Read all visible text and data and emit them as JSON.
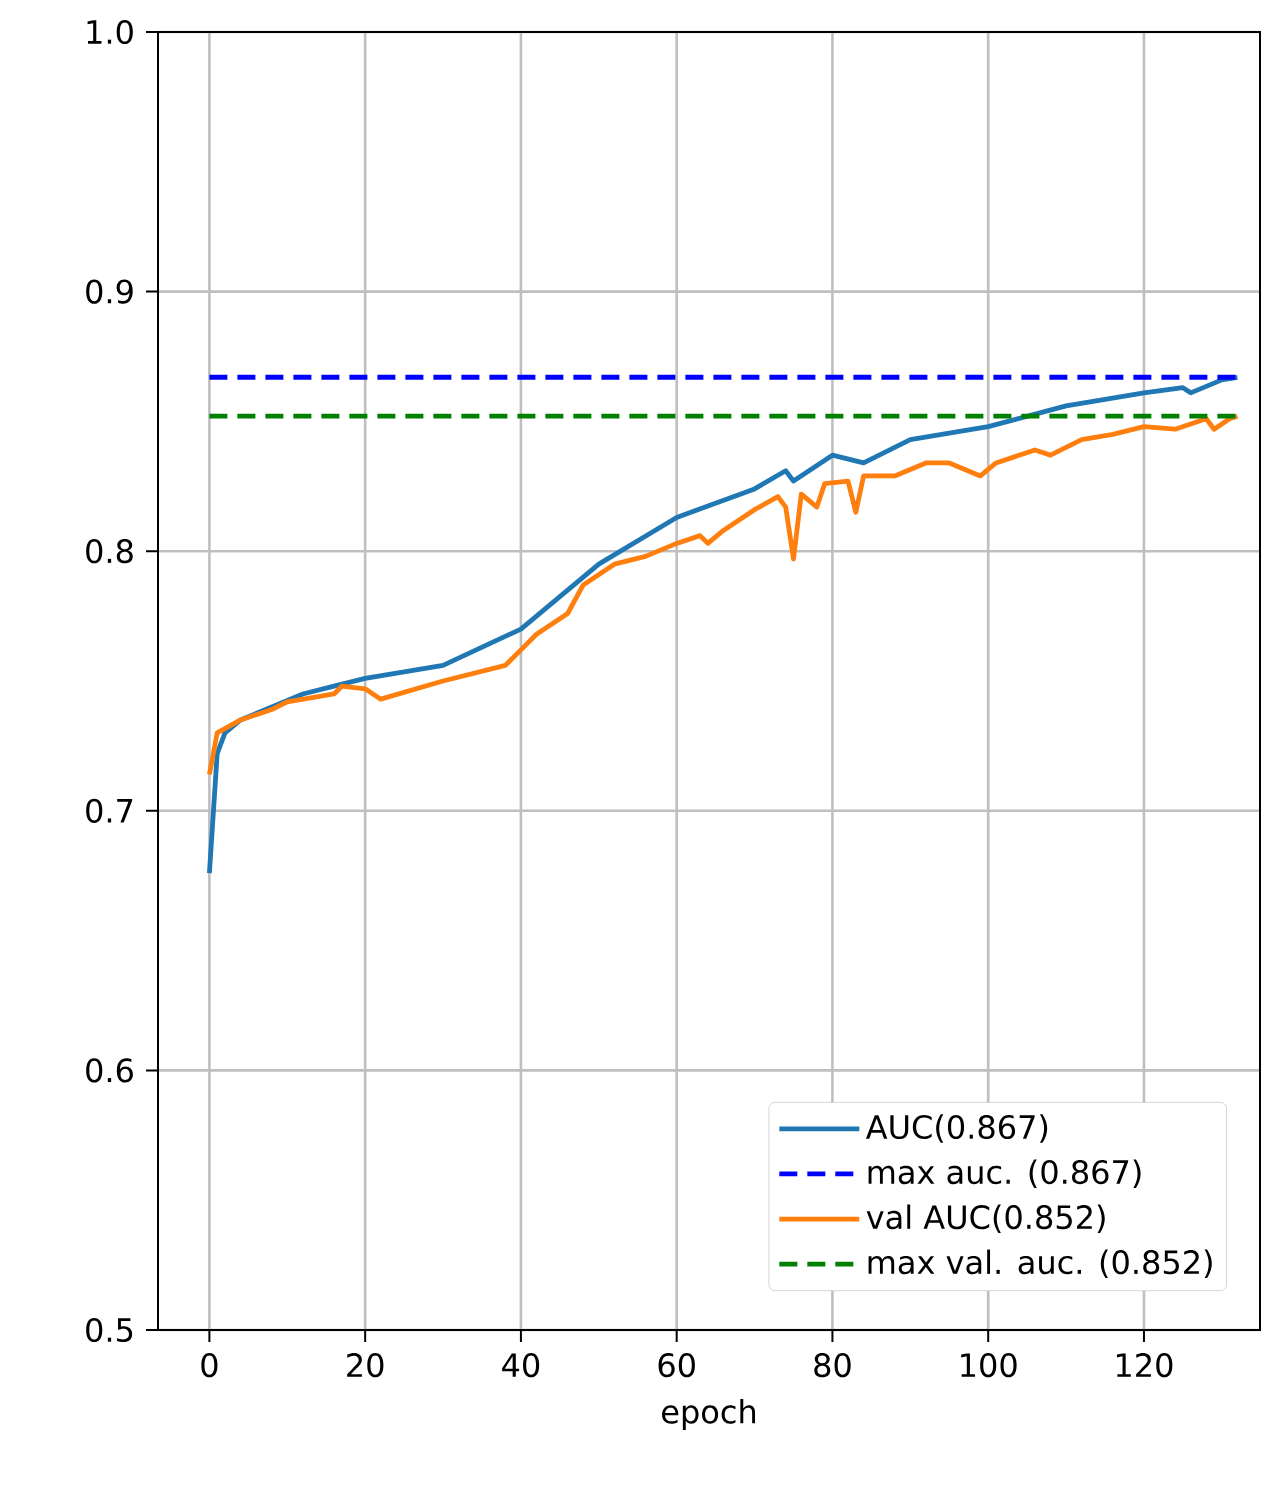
{
  "chart_data": {
    "type": "line",
    "xlabel": "epoch",
    "xlim": [
      -6.6,
      134.9
    ],
    "ylim": [
      0.5,
      1.0
    ],
    "xticks": [
      0,
      20,
      40,
      60,
      80,
      100,
      120
    ],
    "yticks": [
      0.5,
      0.6,
      0.7,
      0.8,
      0.9,
      {
        "value": 1.0,
        "label": "1.0"
      }
    ],
    "grid": true,
    "legend": "bottom right",
    "line_style": "solid",
    "series": [
      {
        "name": "AUC(0.867)",
        "color": "#1f77b4",
        "x": [
          0,
          1,
          2,
          4,
          8,
          12,
          16,
          20,
          30,
          40,
          50,
          60,
          70,
          74,
          75,
          80,
          84,
          90,
          100,
          110,
          120,
          125,
          126,
          130,
          132
        ],
        "values": [
          0.676,
          0.722,
          0.73,
          0.735,
          0.74,
          0.745,
          0.748,
          0.751,
          0.756,
          0.77,
          0.795,
          0.813,
          0.824,
          0.831,
          0.827,
          0.837,
          0.834,
          0.843,
          0.848,
          0.856,
          0.861,
          0.863,
          0.861,
          0.866,
          0.867
        ]
      },
      {
        "name": "max auc. (0.867)",
        "color": "#0000ff",
        "line_style": "dashed",
        "x": [
          0,
          132
        ],
        "values": [
          0.867,
          0.867
        ]
      },
      {
        "name": "val AUC(0.852)",
        "color": "#ff7f0e",
        "x": [
          0,
          1,
          4,
          8,
          10,
          16,
          17,
          20,
          22,
          30,
          38,
          40,
          42,
          46,
          48,
          52,
          56,
          60,
          63,
          64,
          66,
          70,
          73,
          74,
          75,
          76,
          78,
          79,
          82,
          83,
          84,
          88,
          92,
          95,
          99,
          101,
          106,
          108,
          112,
          116,
          120,
          124,
          128,
          129,
          131,
          132
        ],
        "values": [
          0.714,
          0.73,
          0.735,
          0.739,
          0.742,
          0.745,
          0.748,
          0.747,
          0.743,
          0.75,
          0.756,
          0.762,
          0.768,
          0.776,
          0.787,
          0.795,
          0.798,
          0.803,
          0.806,
          0.803,
          0.808,
          0.816,
          0.821,
          0.817,
          0.797,
          0.822,
          0.817,
          0.826,
          0.827,
          0.815,
          0.829,
          0.829,
          0.834,
          0.834,
          0.829,
          0.834,
          0.839,
          0.837,
          0.843,
          0.845,
          0.848,
          0.847,
          0.851,
          0.847,
          0.851,
          0.852
        ]
      },
      {
        "name": "max val. auc. (0.852)",
        "color": "#008000",
        "line_style": "dashed",
        "x": [
          0,
          132
        ],
        "values": [
          0.852,
          0.852
        ]
      }
    ]
  }
}
